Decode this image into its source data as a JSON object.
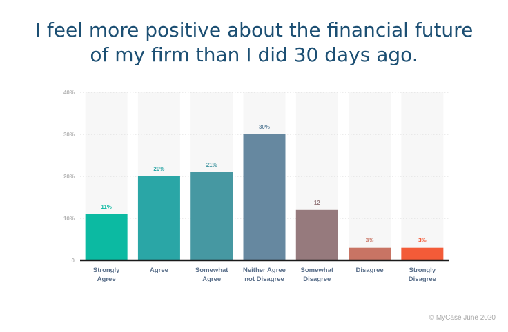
{
  "title_lines": [
    "I feel more positive about the financial future",
    "of my firm than I did 30 days ago."
  ],
  "copyright": "© MyCase June 2020",
  "chart_data": {
    "type": "bar",
    "categories": [
      [
        "Strongly",
        "Agree"
      ],
      [
        "Agree"
      ],
      [
        "Somewhat",
        "Agree"
      ],
      [
        "Neither Agree",
        "not Disagree"
      ],
      [
        "Somewhat",
        "Disagree"
      ],
      [
        "Disagree"
      ],
      [
        "Strongly",
        "Disagree"
      ]
    ],
    "values": [
      11,
      20,
      21,
      30,
      12,
      3,
      3
    ],
    "data_labels": [
      "11%",
      "20%",
      "21%",
      "30%",
      "12",
      "3%",
      "3%"
    ],
    "colors": [
      "#0cbaa2",
      "#2aa6a6",
      "#4698a2",
      "#6688a0",
      "#967a7d",
      "#c87464",
      "#f35b38"
    ],
    "y_ticks": [
      0,
      10,
      20,
      30,
      40
    ],
    "y_tick_labels": [
      "0",
      "10%",
      "20%",
      "30%",
      "40%"
    ],
    "ylim": [
      0,
      40
    ],
    "grid": true,
    "column_background": "#f7f7f7"
  }
}
